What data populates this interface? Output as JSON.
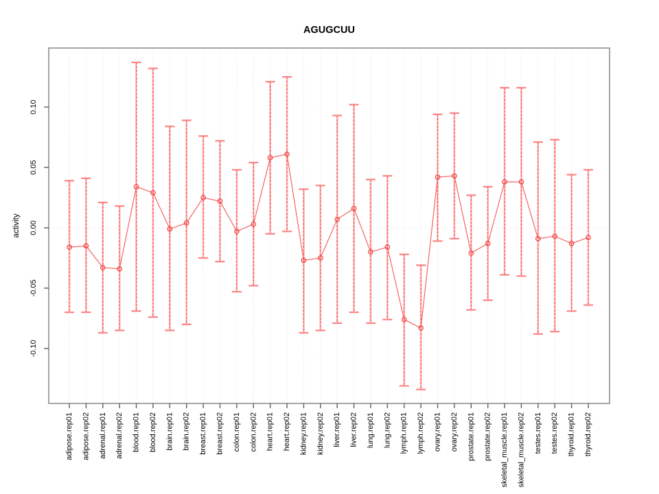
{
  "chart_data": {
    "type": "line",
    "title": "AGUGCUU",
    "xlabel": "",
    "ylabel": "activity",
    "ylim": [
      -0.1455,
      0.1489
    ],
    "ytick_values": [
      0.1,
      0.05,
      0.0,
      -0.05,
      -0.1
    ],
    "ytick_labels": [
      "0.10",
      "0.05",
      "0.00",
      "-0.05",
      "-0.10"
    ],
    "grid": "vertical dotted gridline at each category; dotted horizontal line at y=0",
    "legend_position": "none",
    "marker": "open-circle",
    "error_bars": true,
    "categories": [
      "adipose.rep01",
      "adipose.rep02",
      "adrenal.rep01",
      "adrenal.rep02",
      "blood.rep01",
      "blood.rep02",
      "brain.rep01",
      "brain.rep02",
      "breast.rep01",
      "breast.rep02",
      "colon.rep01",
      "colon.rep02",
      "heart.rep01",
      "heart.rep02",
      "kidney.rep01",
      "kidney.rep02",
      "liver.rep01",
      "liver.rep02",
      "lung.rep01",
      "lung.rep02",
      "lymph.rep01",
      "lymph.rep02",
      "ovary.rep01",
      "ovary.rep02",
      "prostate.rep01",
      "prostate.rep02",
      "skeletal_muscle.rep01",
      "skeletal_muscle.rep02",
      "testes.rep01",
      "testes.rep02",
      "thyroid.rep01",
      "thyroid.rep02"
    ],
    "series": [
      {
        "name": "activity",
        "values": [
          -0.016,
          -0.015,
          -0.033,
          -0.034,
          0.034,
          0.029,
          -0.001,
          0.004,
          0.025,
          0.022,
          -0.003,
          0.003,
          0.058,
          0.061,
          -0.027,
          -0.025,
          0.007,
          0.016,
          -0.02,
          -0.016,
          -0.076,
          -0.083,
          0.042,
          0.043,
          -0.021,
          -0.013,
          0.038,
          0.038,
          -0.009,
          -0.007,
          -0.013,
          -0.008
        ],
        "upper": [
          0.039,
          0.041,
          0.021,
          0.018,
          0.137,
          0.132,
          0.084,
          0.089,
          0.076,
          0.072,
          0.048,
          0.054,
          0.121,
          0.125,
          0.032,
          0.035,
          0.093,
          0.102,
          0.04,
          0.043,
          -0.022,
          -0.031,
          0.094,
          0.095,
          0.027,
          0.034,
          0.116,
          0.116,
          0.071,
          0.073,
          0.044,
          0.048
        ],
        "lower": [
          -0.07,
          -0.07,
          -0.087,
          -0.085,
          -0.069,
          -0.074,
          -0.085,
          -0.08,
          -0.025,
          -0.028,
          -0.053,
          -0.048,
          -0.005,
          -0.003,
          -0.087,
          -0.085,
          -0.079,
          -0.07,
          -0.079,
          -0.076,
          -0.131,
          -0.134,
          -0.011,
          -0.009,
          -0.068,
          -0.06,
          -0.039,
          -0.04,
          -0.088,
          -0.086,
          -0.069,
          -0.064
        ]
      }
    ],
    "colors": {
      "point_stroke": "#ef4646",
      "series_line": "#f56262",
      "errorbar_solid": "#ffb6b6",
      "errorbar_dash": "#ef4646",
      "errorbar_cap": "#fb8383",
      "gridline": "#dcdcdc",
      "zero_line": "#f3d9d9",
      "axis": "#5e5e5e",
      "box": "#7d7d7d",
      "text": "#000000"
    }
  }
}
